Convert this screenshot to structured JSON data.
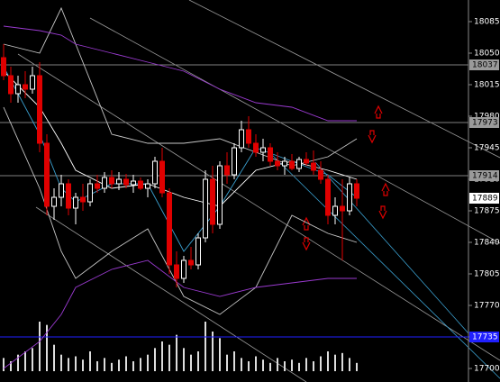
{
  "chart_data": {
    "type": "candlestick",
    "ylim": [
      17685,
      18109
    ],
    "yticks": [
      18085,
      18050,
      18015,
      17980,
      17945,
      17910,
      17875,
      17840,
      17805,
      17770,
      17735,
      17700
    ],
    "up_color": "#ffffff",
    "down_color": "#e00000",
    "open": [
      18045,
      18025,
      18005,
      18015,
      18010,
      18025,
      17950,
      17880,
      17890,
      17905,
      17878,
      17890,
      17885,
      17905,
      17900,
      17912,
      17905,
      17910,
      17904,
      17908,
      17900,
      17905,
      17930,
      17895,
      17815,
      17800,
      17820,
      17815,
      17845,
      17910,
      17860,
      17925,
      17915,
      17945,
      17965,
      17950,
      17940,
      17945,
      17930,
      17925,
      17930,
      17922,
      17932,
      17928,
      17920,
      17910,
      17870,
      17880,
      17875,
      17905
    ],
    "high": [
      18060,
      18035,
      18025,
      18030,
      18035,
      18040,
      17960,
      17900,
      17915,
      17910,
      17895,
      17905,
      17910,
      17915,
      17918,
      17920,
      17918,
      17916,
      17915,
      17912,
      17910,
      17935,
      17945,
      17900,
      17830,
      17825,
      17835,
      17850,
      17920,
      17925,
      17930,
      17940,
      17950,
      17975,
      17980,
      17960,
      17955,
      17950,
      17940,
      17935,
      17938,
      17935,
      17940,
      17942,
      17930,
      17915,
      17890,
      17910,
      17912,
      17910
    ],
    "low": [
      18020,
      17995,
      17995,
      18000,
      18005,
      17940,
      17870,
      17865,
      17880,
      17870,
      17860,
      17875,
      17880,
      17895,
      17895,
      17900,
      17898,
      17900,
      17895,
      17898,
      17890,
      17900,
      17890,
      17805,
      17790,
      17795,
      17810,
      17810,
      17840,
      17850,
      17855,
      17905,
      17910,
      17940,
      17945,
      17935,
      17930,
      17925,
      17920,
      17915,
      17920,
      17918,
      17925,
      17915,
      17905,
      17860,
      17860,
      17820,
      17870,
      17880
    ],
    "close": [
      18025,
      18005,
      18015,
      18010,
      18025,
      17950,
      17880,
      17890,
      17905,
      17878,
      17890,
      17885,
      17905,
      17900,
      17912,
      17905,
      17910,
      17904,
      17908,
      17900,
      17905,
      17930,
      17895,
      17815,
      17800,
      17820,
      17815,
      17845,
      17910,
      17860,
      17925,
      17915,
      17945,
      17965,
      17950,
      17940,
      17945,
      17930,
      17925,
      17930,
      17922,
      17932,
      17928,
      17920,
      17910,
      17870,
      17880,
      17875,
      17905,
      17889
    ],
    "volume": [
      8,
      6,
      10,
      12,
      14,
      30,
      28,
      16,
      10,
      8,
      9,
      7,
      12,
      6,
      8,
      5,
      7,
      9,
      6,
      8,
      10,
      14,
      18,
      16,
      22,
      14,
      10,
      12,
      30,
      24,
      20,
      10,
      12,
      8,
      6,
      9,
      7,
      5,
      8,
      6,
      7,
      5,
      8,
      6,
      9,
      12,
      10,
      11,
      8,
      5
    ],
    "overlays": [
      {
        "color": "#c8c8c8",
        "x": [
          0,
          5,
          8,
          10,
          15,
          20,
          25,
          30,
          35,
          40,
          45,
          49
        ],
        "values": [
          18060,
          18050,
          18100,
          18060,
          17960,
          17950,
          17950,
          17955,
          17940,
          17925,
          17935,
          17955
        ]
      },
      {
        "color": "#c8c8c8",
        "x": [
          0,
          5,
          8,
          10,
          15,
          20,
          25,
          30,
          35,
          40,
          45,
          49
        ],
        "values": [
          17990,
          17900,
          17830,
          17800,
          17830,
          17855,
          17780,
          17760,
          17790,
          17870,
          17850,
          17840
        ]
      },
      {
        "color": "#ffffff",
        "x": [
          0,
          5,
          8,
          10,
          15,
          20,
          25,
          30,
          35,
          40,
          45,
          49
        ],
        "values": [
          18030,
          17990,
          17950,
          17920,
          17900,
          17905,
          17890,
          17880,
          17920,
          17930,
          17920,
          17910
        ]
      },
      {
        "color": "#3aa0d0",
        "x": [
          0,
          5,
          8,
          10,
          15,
          20,
          25,
          30,
          35,
          40,
          45,
          49
        ],
        "values": [
          18035,
          17960,
          17900,
          17885,
          17905,
          17905,
          17830,
          17880,
          17945,
          17930,
          17915,
          17890
        ]
      },
      {
        "color": "#9a3ad0",
        "x": [
          0,
          5,
          8,
          10,
          15,
          20,
          25,
          30,
          35,
          40,
          45,
          49
        ],
        "values": [
          18080,
          18075,
          18070,
          18060,
          18050,
          18040,
          18030,
          18010,
          17995,
          17990,
          17975,
          17975
        ]
      },
      {
        "color": "#9a3ad0",
        "x": [
          0,
          5,
          8,
          10,
          15,
          20,
          25,
          30,
          35,
          40,
          45,
          49
        ],
        "values": [
          17700,
          17730,
          17760,
          17790,
          17810,
          17820,
          17790,
          17780,
          17790,
          17795,
          17800,
          17800
        ]
      }
    ],
    "levels": [
      {
        "value": 18037,
        "color": "#808080"
      },
      {
        "value": 17973,
        "color": "#808080"
      },
      {
        "value": 17914,
        "color": "#808080"
      },
      {
        "value": 17889,
        "color": "#ffffff"
      },
      {
        "value": 17735,
        "color": "#2020ff"
      }
    ]
  }
}
